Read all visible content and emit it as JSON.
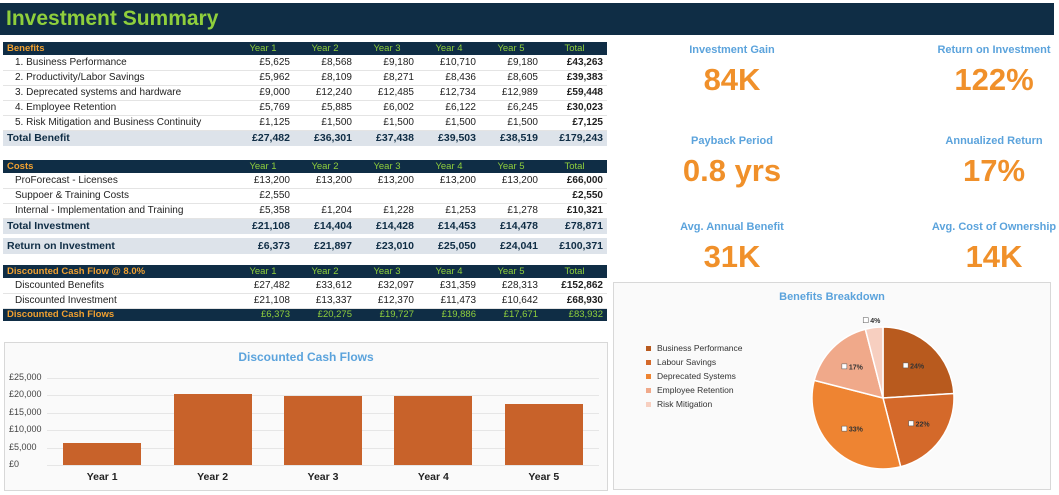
{
  "title": "Investment Summary",
  "years": [
    "Year 1",
    "Year 2",
    "Year 3",
    "Year 4",
    "Year 5"
  ],
  "total_label": "Total",
  "benefits": {
    "header": "Benefits",
    "rows": [
      {
        "label": "1. Business Performance",
        "values": [
          "£5,625",
          "£8,568",
          "£9,180",
          "£10,710",
          "£9,180"
        ],
        "total": "£43,263"
      },
      {
        "label": "2. Productivity/Labor Savings",
        "values": [
          "£5,962",
          "£8,109",
          "£8,271",
          "£8,436",
          "£8,605"
        ],
        "total": "£39,383"
      },
      {
        "label": "3. Deprecated systems and hardware",
        "values": [
          "£9,000",
          "£12,240",
          "£12,485",
          "£12,734",
          "£12,989"
        ],
        "total": "£59,448"
      },
      {
        "label": "4. Employee Retention",
        "values": [
          "£5,769",
          "£5,885",
          "£6,002",
          "£6,122",
          "£6,245"
        ],
        "total": "£30,023"
      },
      {
        "label": "5. Risk Mitigation and Business Continuity",
        "values": [
          "£1,125",
          "£1,500",
          "£1,500",
          "£1,500",
          "£1,500"
        ],
        "total": "£7,125"
      }
    ],
    "total_row": {
      "label": "Total Benefit",
      "values": [
        "£27,482",
        "£36,301",
        "£37,438",
        "£39,503",
        "£38,519"
      ],
      "total": "£179,243"
    }
  },
  "costs": {
    "header": "Costs",
    "rows": [
      {
        "label": "ProForecast - Licenses",
        "values": [
          "£13,200",
          "£13,200",
          "£13,200",
          "£13,200",
          "£13,200"
        ],
        "total": "£66,000"
      },
      {
        "label": "Suppoer & Training Costs",
        "values": [
          "£2,550",
          "",
          "",
          "",
          ""
        ],
        "total": "£2,550"
      },
      {
        "label": "Internal - Implementation and Training",
        "values": [
          "£5,358",
          "£1,204",
          "£1,228",
          "£1,253",
          "£1,278"
        ],
        "total": "£10,321"
      }
    ],
    "total_row": {
      "label": "Total Investment",
      "values": [
        "£21,108",
        "£14,404",
        "£14,428",
        "£14,453",
        "£14,478"
      ],
      "total": "£78,871"
    }
  },
  "roi_row": {
    "label": "Return on Investment",
    "values": [
      "£6,373",
      "£21,897",
      "£23,010",
      "£25,050",
      "£24,041"
    ],
    "total": "£100,371"
  },
  "dcf": {
    "header": "Discounted Cash Flow @ 8.0%",
    "rows": [
      {
        "label": "Discounted Benefits",
        "values": [
          "£27,482",
          "£33,612",
          "£32,097",
          "£31,359",
          "£28,313"
        ],
        "total": "£152,862"
      },
      {
        "label": "Discounted Investment",
        "values": [
          "£21,108",
          "£13,337",
          "£12,370",
          "£11,473",
          "£10,642"
        ],
        "total": "£68,930"
      }
    ],
    "total_row": {
      "label": "Discounted Cash Flows",
      "values": [
        "£6,373",
        "£20,275",
        "£19,727",
        "£19,886",
        "£17,671"
      ],
      "total": "£83,932"
    }
  },
  "kpis": [
    {
      "label": "Investment Gain",
      "value": "84K"
    },
    {
      "label": "Return on Investment",
      "value": "122%"
    },
    {
      "label": "Payback Period",
      "value": "0.8 yrs"
    },
    {
      "label": "Annualized Return",
      "value": "17%"
    },
    {
      "label": "Avg. Annual Benefit",
      "value": "31K"
    },
    {
      "label": "Avg. Cost of Ownership",
      "value": "14K"
    }
  ],
  "colors": {
    "navy": "#0f2d45",
    "green": "#8fcf3c",
    "orange": "#f0a030",
    "bar": "#c8622a",
    "kpi_value": "#f0902a",
    "kpi_label": "#5ba3dc"
  },
  "chart_data": [
    {
      "type": "bar",
      "title": "Discounted Cash Flows",
      "categories": [
        "Year 1",
        "Year 2",
        "Year 3",
        "Year 4",
        "Year 5"
      ],
      "values": [
        6373,
        20275,
        19727,
        19886,
        17671
      ],
      "ylim": [
        0,
        25000
      ],
      "yticks": [
        "£0",
        "£5,000",
        "£10,000",
        "£15,000",
        "£20,000",
        "£25,000"
      ],
      "grid": true
    },
    {
      "type": "pie",
      "title": "Benefits Breakdown",
      "legend_position": "left",
      "slices": [
        {
          "name": "Business Performance",
          "value": 24,
          "label": "24%",
          "color": "#b85a1e"
        },
        {
          "name": "Labour Savings",
          "value": 22,
          "label": "22%",
          "color": "#d4692a"
        },
        {
          "name": "Deprecated Systems",
          "value": 33,
          "label": "33%",
          "color": "#ee8432"
        },
        {
          "name": "Employee Retention",
          "value": 17,
          "label": "17%",
          "color": "#f0a98a"
        },
        {
          "name": "Risk Mitigation",
          "value": 4,
          "label": "4%",
          "color": "#f7cfc0"
        }
      ]
    }
  ]
}
